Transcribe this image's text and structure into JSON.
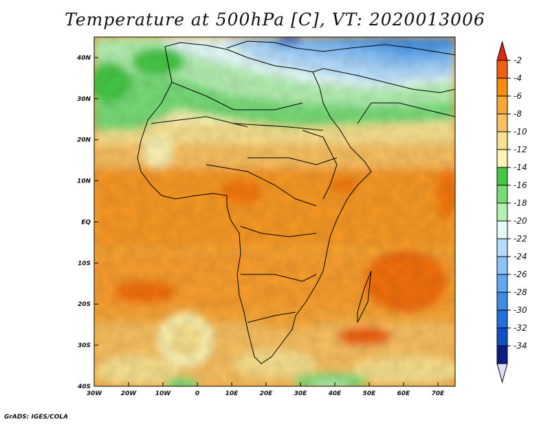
{
  "title": "Temperature at 500hPa [C], VT: 2020013006",
  "credit": "GrADS: IGES/COLA",
  "map": {
    "lon_range": [
      -30,
      75
    ],
    "lat_range": [
      -40,
      45
    ],
    "x_ticks": [
      {
        "lon": -30,
        "label": "30W"
      },
      {
        "lon": -20,
        "label": "20W"
      },
      {
        "lon": -10,
        "label": "10W"
      },
      {
        "lon": 0,
        "label": "0"
      },
      {
        "lon": 10,
        "label": "10E"
      },
      {
        "lon": 20,
        "label": "20E"
      },
      {
        "lon": 30,
        "label": "30E"
      },
      {
        "lon": 40,
        "label": "40E"
      },
      {
        "lon": 50,
        "label": "50E"
      },
      {
        "lon": 60,
        "label": "60E"
      },
      {
        "lon": 70,
        "label": "70E"
      }
    ],
    "y_ticks": [
      {
        "lat": 40,
        "label": "40N"
      },
      {
        "lat": 30,
        "label": "30N"
      },
      {
        "lat": 20,
        "label": "20N"
      },
      {
        "lat": 10,
        "label": "10N"
      },
      {
        "lat": 0,
        "label": "EQ"
      },
      {
        "lat": -10,
        "label": "10S"
      },
      {
        "lat": -20,
        "label": "20S"
      },
      {
        "lat": -30,
        "label": "30S"
      },
      {
        "lat": -40,
        "label": "40S"
      }
    ]
  },
  "colorbar": {
    "levels": [
      {
        "label": "-2",
        "color": "#f06010"
      },
      {
        "label": "-4",
        "color": "#f88c10"
      },
      {
        "label": "-6",
        "color": "#f8a838"
      },
      {
        "label": "-8",
        "color": "#f8c060"
      },
      {
        "label": "-10",
        "color": "#f8e08c"
      },
      {
        "label": "-12",
        "color": "#fcf4b4"
      },
      {
        "label": "-14",
        "color": "#44c844"
      },
      {
        "label": "-16",
        "color": "#78dc78"
      },
      {
        "label": "-18",
        "color": "#b4f0b0"
      },
      {
        "label": "-20",
        "color": "#e4fcf8"
      },
      {
        "label": "-22",
        "color": "#b4dcfc"
      },
      {
        "label": "-24",
        "color": "#8cc4f8"
      },
      {
        "label": "-26",
        "color": "#60a8f0"
      },
      {
        "label": "-28",
        "color": "#3c8ce4"
      },
      {
        "label": "-30",
        "color": "#2070d8"
      },
      {
        "label": "-32",
        "color": "#1050c0"
      },
      {
        "label": "-34",
        "color": "#0c1c80"
      }
    ],
    "top_arrow_color": "#e02810",
    "bottom_arrow_color": "#e0dcfc"
  }
}
